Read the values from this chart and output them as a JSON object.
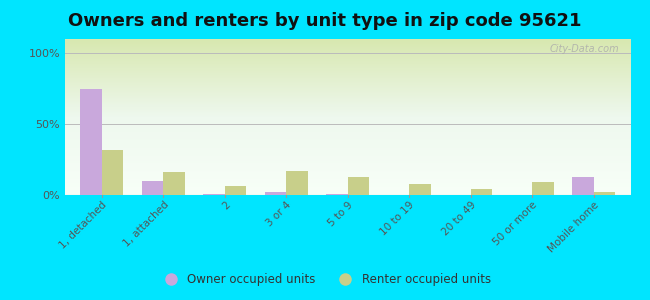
{
  "title": "Owners and renters by unit type in zip code 95621",
  "categories": [
    "1, detached",
    "1, attached",
    "2",
    "3 or 4",
    "5 to 9",
    "10 to 19",
    "20 to 49",
    "50 or more",
    "Mobile home"
  ],
  "owner_values": [
    75,
    10,
    1,
    2,
    1,
    0,
    0,
    0,
    13
  ],
  "renter_values": [
    32,
    16,
    6,
    17,
    13,
    8,
    4,
    9,
    2
  ],
  "owner_color": "#c9a8dc",
  "renter_color": "#c8cf8a",
  "owner_label": "Owner occupied units",
  "renter_label": "Renter occupied units",
  "yticks": [
    0,
    50,
    100
  ],
  "ytick_labels": [
    "0%",
    "50%",
    "100%"
  ],
  "ylim": [
    0,
    110
  ],
  "outer_bg_color": "#00e5ff",
  "plot_bg_top": "#f0faf0",
  "plot_bg_bottom": "#deeacc",
  "title_fontsize": 13,
  "watermark": "City-Data.com",
  "bar_width": 0.35,
  "figsize": [
    6.5,
    3.0
  ],
  "dpi": 100
}
